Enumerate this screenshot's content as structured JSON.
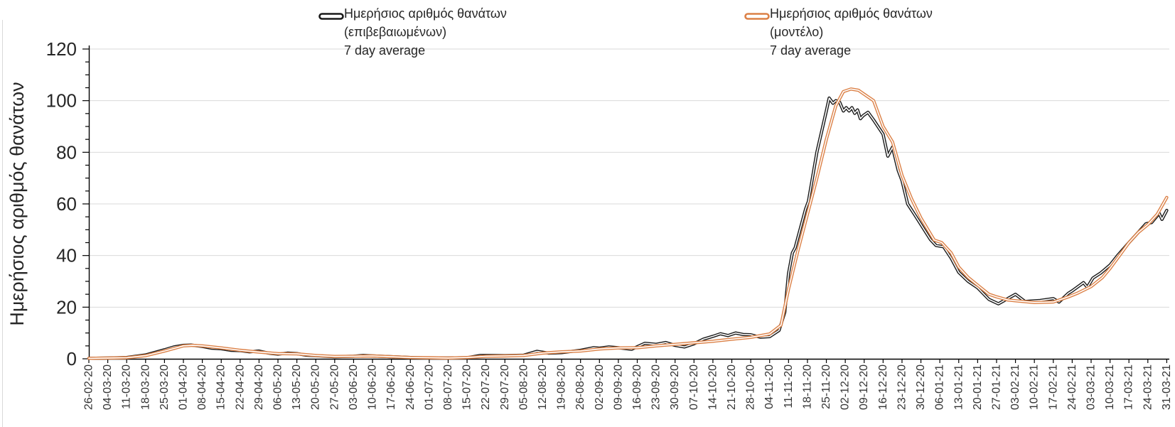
{
  "legend": {
    "entries": [
      {
        "line1": "Ημερήσιος αριθμός θανάτων",
        "line2": "(επιβεβαιωμένων)",
        "line3": "7 day average",
        "color": "#1A1A1A"
      },
      {
        "line1": "Ημερήσιος αριθμός θανάτων",
        "line2": "(μοντέλο)",
        "line3": "7 day average",
        "color": "#DC8147"
      }
    ]
  },
  "y_axis": {
    "title": "Ημερήσιος αριθμός θανάτων",
    "ticks": [
      "0",
      "20",
      "40",
      "60",
      "80",
      "100",
      "120"
    ]
  },
  "colors": {
    "background": "#FFFFFF",
    "grid": "#D9D9D9",
    "axis": "#000000",
    "tick_text": "#333333",
    "y_label_text": "#262626",
    "series_confirmed": "#1A1A1A",
    "series_model": "#DC8147",
    "line_core": "#FFFFFF"
  },
  "chart_data": {
    "type": "line",
    "title": "",
    "xlabel": "",
    "ylabel": "Ημερήσιος αριθμός θανάτων",
    "ylim": [
      0,
      120
    ],
    "y_ticks": [
      0,
      20,
      40,
      60,
      80,
      100,
      120
    ],
    "y_minor_step": 5,
    "grid": "horizontal-major",
    "legend_position": "top",
    "x_tick_labels": [
      "26-02-20",
      "04-03-20",
      "11-03-20",
      "18-03-20",
      "25-03-20",
      "01-04-20",
      "08-04-20",
      "15-04-20",
      "22-04-20",
      "29-04-20",
      "06-05-20",
      "13-05-20",
      "20-05-20",
      "27-05-20",
      "03-06-20",
      "10-06-20",
      "17-06-20",
      "24-06-20",
      "01-07-20",
      "08-07-20",
      "15-07-20",
      "22-07-20",
      "29-07-20",
      "05-08-20",
      "12-08-20",
      "19-08-20",
      "26-08-20",
      "02-09-20",
      "09-09-20",
      "16-09-20",
      "23-09-20",
      "30-09-20",
      "07-10-20",
      "14-10-20",
      "21-10-20",
      "28-10-20",
      "04-11-20",
      "11-11-20",
      "18-11-20",
      "25-11-20",
      "02-12-20",
      "09-12-20",
      "16-12-20",
      "23-12-20",
      "30-12-20",
      "06-01-21",
      "13-01-21",
      "20-01-21",
      "27-01-21",
      "03-02-21",
      "10-02-21",
      "17-02-21",
      "24-02-21",
      "03-03-21",
      "10-03-21",
      "17-03-21",
      "24-03-21",
      "31-03-21"
    ],
    "x_note": "points given as [week_index_from_26-02-20, value]; week_index may be fractional for intra-week detail",
    "series": [
      {
        "name": "Ημερήσιος αριθμός θανάτων (επιβεβαιωμένων) 7 day average",
        "color": "#1A1A1A",
        "style": "thick-line-with-white-core",
        "points": [
          [
            0,
            0.2
          ],
          [
            1,
            0.3
          ],
          [
            2,
            0.5
          ],
          [
            3,
            1.5
          ],
          [
            4,
            3.5
          ],
          [
            4.5,
            4.6
          ],
          [
            5,
            5.2
          ],
          [
            5.4,
            5.3
          ],
          [
            6,
            4.8
          ],
          [
            6.5,
            4.1
          ],
          [
            7,
            3.9
          ],
          [
            7.5,
            3.3
          ],
          [
            8,
            3.2
          ],
          [
            8.5,
            2.7
          ],
          [
            9,
            3.0
          ],
          [
            9.5,
            2.2
          ],
          [
            10,
            1.8
          ],
          [
            10.5,
            2.2
          ],
          [
            11,
            2.0
          ],
          [
            11.5,
            1.4
          ],
          [
            12,
            1.2
          ],
          [
            13,
            0.8
          ],
          [
            14,
            1.0
          ],
          [
            14.5,
            1.3
          ],
          [
            15,
            1.1
          ],
          [
            16,
            0.8
          ],
          [
            17,
            0.5
          ],
          [
            18,
            0.3
          ],
          [
            19,
            0.3
          ],
          [
            20,
            0.4
          ],
          [
            20.7,
            1.3
          ],
          [
            21,
            1.3
          ],
          [
            22,
            1.2
          ],
          [
            23,
            1.4
          ],
          [
            23.7,
            2.9
          ],
          [
            24.3,
            2.2
          ],
          [
            25,
            2.4
          ],
          [
            26,
            3.3
          ],
          [
            26.7,
            4.3
          ],
          [
            27,
            4.1
          ],
          [
            27.5,
            4.6
          ],
          [
            28,
            4.3
          ],
          [
            28.7,
            3.7
          ],
          [
            29.4,
            6.0
          ],
          [
            30,
            5.6
          ],
          [
            30.5,
            6.3
          ],
          [
            31,
            5.2
          ],
          [
            31.5,
            4.6
          ],
          [
            32,
            5.8
          ],
          [
            32.5,
            7.6
          ],
          [
            33,
            8.7
          ],
          [
            33.4,
            9.7
          ],
          [
            33.8,
            9.0
          ],
          [
            34.2,
            10.0
          ],
          [
            34.6,
            9.4
          ],
          [
            35,
            9.3
          ],
          [
            35.5,
            8.4
          ],
          [
            36,
            8.6
          ],
          [
            36.5,
            11
          ],
          [
            36.8,
            18
          ],
          [
            37,
            33
          ],
          [
            37.2,
            41
          ],
          [
            37.35,
            43
          ],
          [
            37.9,
            58
          ],
          [
            38.05,
            61
          ],
          [
            38.5,
            80
          ],
          [
            39,
            96
          ],
          [
            39.15,
            101
          ],
          [
            39.35,
            99
          ],
          [
            39.5,
            100
          ],
          [
            39.7,
            99.4
          ],
          [
            39.9,
            96
          ],
          [
            40.05,
            97.3
          ],
          [
            40.2,
            96
          ],
          [
            40.35,
            97.3
          ],
          [
            40.5,
            95.1
          ],
          [
            40.65,
            96.4
          ],
          [
            40.8,
            93
          ],
          [
            40.95,
            94.2
          ],
          [
            41.2,
            95.5
          ],
          [
            41.5,
            92.5
          ],
          [
            42,
            87
          ],
          [
            42.25,
            78.5
          ],
          [
            42.5,
            82
          ],
          [
            42.8,
            73
          ],
          [
            43,
            69
          ],
          [
            43.3,
            60
          ],
          [
            43.7,
            55.5
          ],
          [
            44,
            52
          ],
          [
            44.5,
            46.2
          ],
          [
            44.8,
            43.9
          ],
          [
            45.2,
            43.4
          ],
          [
            45.6,
            39
          ],
          [
            46,
            33.5
          ],
          [
            46.5,
            30
          ],
          [
            47,
            27.5
          ],
          [
            47.6,
            23
          ],
          [
            48.1,
            21.3
          ],
          [
            49,
            25
          ],
          [
            49.5,
            22.2
          ],
          [
            50.3,
            22.6
          ],
          [
            51,
            23.3
          ],
          [
            51.3,
            22
          ],
          [
            51.8,
            25.4
          ],
          [
            52,
            26.3
          ],
          [
            52.6,
            29.5
          ],
          [
            52.8,
            27.7
          ],
          [
            53.1,
            31.3
          ],
          [
            53.5,
            33.2
          ],
          [
            54,
            36.3
          ],
          [
            54.4,
            40
          ],
          [
            55,
            45
          ],
          [
            55.4,
            48.2
          ],
          [
            55.9,
            52.3
          ],
          [
            56.2,
            52.8
          ],
          [
            56.6,
            56.3
          ],
          [
            56.75,
            54
          ],
          [
            57,
            57.5
          ]
        ]
      },
      {
        "name": "Ημερήσιος αριθμός θανάτων (μοντέλο) 7 day average",
        "color": "#DC8147",
        "style": "thick-line-with-white-core",
        "points": [
          [
            0,
            0.2
          ],
          [
            1,
            0.3
          ],
          [
            2,
            0.4
          ],
          [
            3,
            1.2
          ],
          [
            4,
            3.0
          ],
          [
            5,
            5.0
          ],
          [
            5.5,
            5.2
          ],
          [
            6,
            5.0
          ],
          [
            7,
            4.2
          ],
          [
            8,
            3.3
          ],
          [
            9,
            2.6
          ],
          [
            10,
            2.0
          ],
          [
            11,
            1.9
          ],
          [
            12,
            1.3
          ],
          [
            13,
            0.9
          ],
          [
            14,
            1.0
          ],
          [
            15,
            1.1
          ],
          [
            16,
            0.8
          ],
          [
            17,
            0.5
          ],
          [
            18,
            0.4
          ],
          [
            19,
            0.3
          ],
          [
            20,
            0.5
          ],
          [
            21,
            1.0
          ],
          [
            22,
            1.1
          ],
          [
            23,
            1.3
          ],
          [
            24,
            2.2
          ],
          [
            25,
            2.7
          ],
          [
            26,
            3.0
          ],
          [
            27,
            3.8
          ],
          [
            28,
            4.2
          ],
          [
            29,
            4.3
          ],
          [
            30,
            5.0
          ],
          [
            31,
            5.6
          ],
          [
            32,
            6.2
          ],
          [
            33,
            6.8
          ],
          [
            34,
            7.6
          ],
          [
            35,
            8.3
          ],
          [
            36,
            9.6
          ],
          [
            36.6,
            13
          ],
          [
            37,
            27
          ],
          [
            37.5,
            42
          ],
          [
            38,
            56
          ],
          [
            38.5,
            70
          ],
          [
            39,
            85
          ],
          [
            39.5,
            98
          ],
          [
            39.9,
            103.5
          ],
          [
            40.3,
            104.5
          ],
          [
            40.7,
            104
          ],
          [
            41,
            102.5
          ],
          [
            41.5,
            100
          ],
          [
            42,
            90
          ],
          [
            42.5,
            84
          ],
          [
            43,
            71
          ],
          [
            43.5,
            62
          ],
          [
            44,
            54.5
          ],
          [
            44.7,
            46
          ],
          [
            45.1,
            45
          ],
          [
            45.6,
            41
          ],
          [
            46,
            35.5
          ],
          [
            46.5,
            31.5
          ],
          [
            47,
            28.5
          ],
          [
            47.6,
            25
          ],
          [
            48,
            24
          ],
          [
            48.6,
            22.8
          ],
          [
            49,
            22.5
          ],
          [
            50,
            21.8
          ],
          [
            51,
            22
          ],
          [
            51.8,
            24
          ],
          [
            52.3,
            25.5
          ],
          [
            53,
            28
          ],
          [
            53.6,
            31.5
          ],
          [
            54,
            35
          ],
          [
            54.5,
            40
          ],
          [
            55,
            45
          ],
          [
            55.5,
            49
          ],
          [
            56,
            52
          ],
          [
            56.5,
            56
          ],
          [
            57,
            62.5
          ]
        ]
      }
    ]
  }
}
